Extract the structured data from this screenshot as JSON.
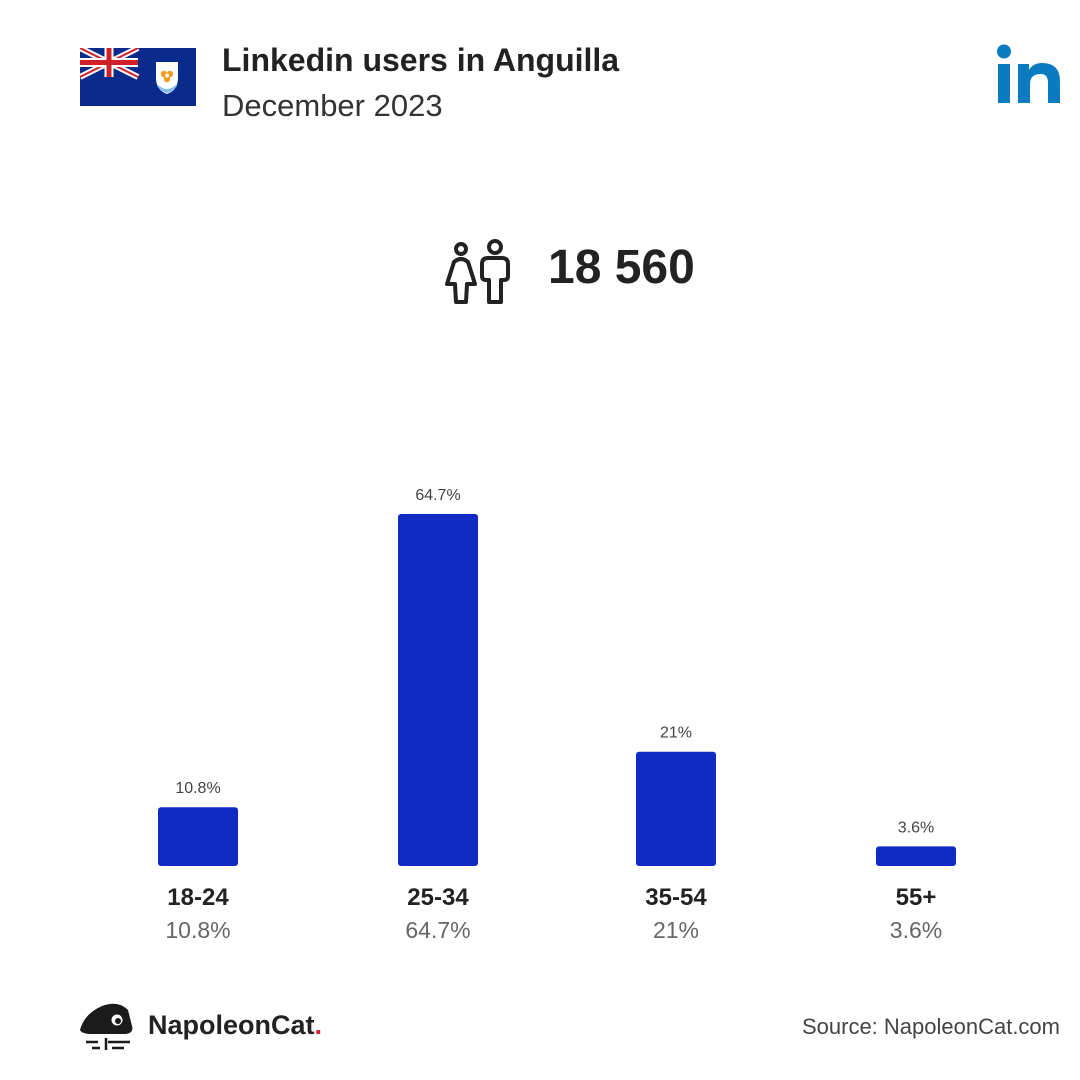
{
  "header": {
    "title": "Linkedin users in Anguilla",
    "subtitle": "December 2023",
    "flag_icon": "anguilla-flag-icon",
    "logo_icon": "linkedin-logo-icon"
  },
  "summary": {
    "total_users": "18 560",
    "icon": "people-icon"
  },
  "chart_data": {
    "type": "bar",
    "categories": [
      "18-24",
      "25-34",
      "35-54",
      "55+"
    ],
    "values": [
      10.8,
      64.7,
      21,
      3.6
    ],
    "value_labels": [
      "10.8%",
      "64.7%",
      "21%",
      "3.6%"
    ],
    "unit": "%",
    "title": "",
    "xlabel": "",
    "ylabel": "",
    "ylim": [
      0,
      64.7
    ],
    "grid": false,
    "bar_color": "#102bc4"
  },
  "footer": {
    "brand_name": "NapoleonCat",
    "brand_dot": ".",
    "source": "Source: NapoleonCat.com"
  },
  "colors": {
    "bar": "#102bc4",
    "linkedin_blue": "#0a7bc1",
    "brand_red": "#e02030"
  }
}
